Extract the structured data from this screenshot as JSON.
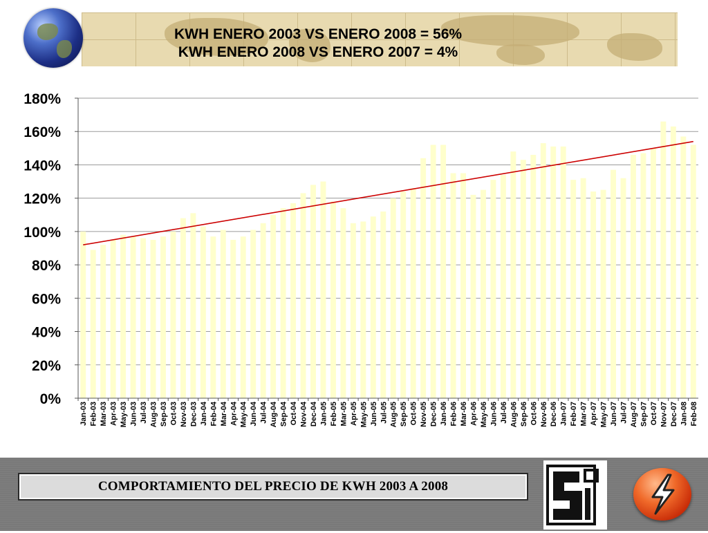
{
  "header": {
    "title_line1": "KWH ENERO 2003 VS ENERO 2008 = 56%",
    "title_line2": "KWH ENERO 2008 VS ENERO 2007 = 4%"
  },
  "chart_data": {
    "type": "bar",
    "title": "",
    "xlabel": "",
    "ylabel": "",
    "ylim": [
      0,
      180
    ],
    "yticks": [
      "0%",
      "20%",
      "40%",
      "60%",
      "80%",
      "100%",
      "120%",
      "140%",
      "160%",
      "180%"
    ],
    "grid": true,
    "bar_color": "#ffffcc",
    "trend_color": "#cc0000",
    "trendline": {
      "start": 92,
      "end": 154
    },
    "categories": [
      "Jan-03",
      "Feb-03",
      "Mar-03",
      "Apr-03",
      "May-03",
      "Jun-03",
      "Jul-03",
      "Aug-03",
      "Sep-03",
      "Oct-03",
      "Nov-03",
      "Dec-03",
      "Jan-04",
      "Feb-04",
      "Mar-04",
      "Apr-04",
      "May-04",
      "Jun-04",
      "Jul-04",
      "Aug-04",
      "Sep-04",
      "Oct-04",
      "Nov-04",
      "Dec-04",
      "Jan-05",
      "Feb-05",
      "Mar-05",
      "Apr-05",
      "May-05",
      "Jun-05",
      "Jul-05",
      "Aug-05",
      "Sep-05",
      "Oct-05",
      "Nov-05",
      "Dec-05",
      "Jan-06",
      "Feb-06",
      "Mar-06",
      "Apr-06",
      "May-06",
      "Jun-06",
      "Jul-06",
      "Aug-06",
      "Sep-06",
      "Oct-06",
      "Nov-06",
      "Dec-06",
      "Jan-07",
      "Feb-07",
      "Mar-07",
      "Apr-07",
      "May-07",
      "Jun-07",
      "Jul-07",
      "Aug-07",
      "Sep-07",
      "Oct-07",
      "Nov-07",
      "Dec-07",
      "Jan-08",
      "Feb-08"
    ],
    "values": [
      100,
      89,
      92,
      95,
      98,
      97,
      96,
      95,
      97,
      100,
      108,
      111,
      103,
      97,
      101,
      95,
      97,
      101,
      105,
      110,
      114,
      117,
      123,
      128,
      130,
      118,
      114,
      105,
      106,
      109,
      112,
      120,
      124,
      126,
      144,
      152,
      152,
      135,
      135,
      122,
      125,
      131,
      134,
      148,
      143,
      146,
      153,
      151,
      151,
      131,
      132,
      124,
      125,
      137,
      132,
      146,
      147,
      150,
      166,
      163,
      157,
      152
    ]
  },
  "footer": {
    "caption": "COMPORTAMIENTO DEL PRECIO DE KWH 2003 A 2008"
  },
  "icons": {
    "globe": "globe-icon",
    "logo": "company-logo-icon",
    "bolt": "lightning-bolt-icon"
  }
}
